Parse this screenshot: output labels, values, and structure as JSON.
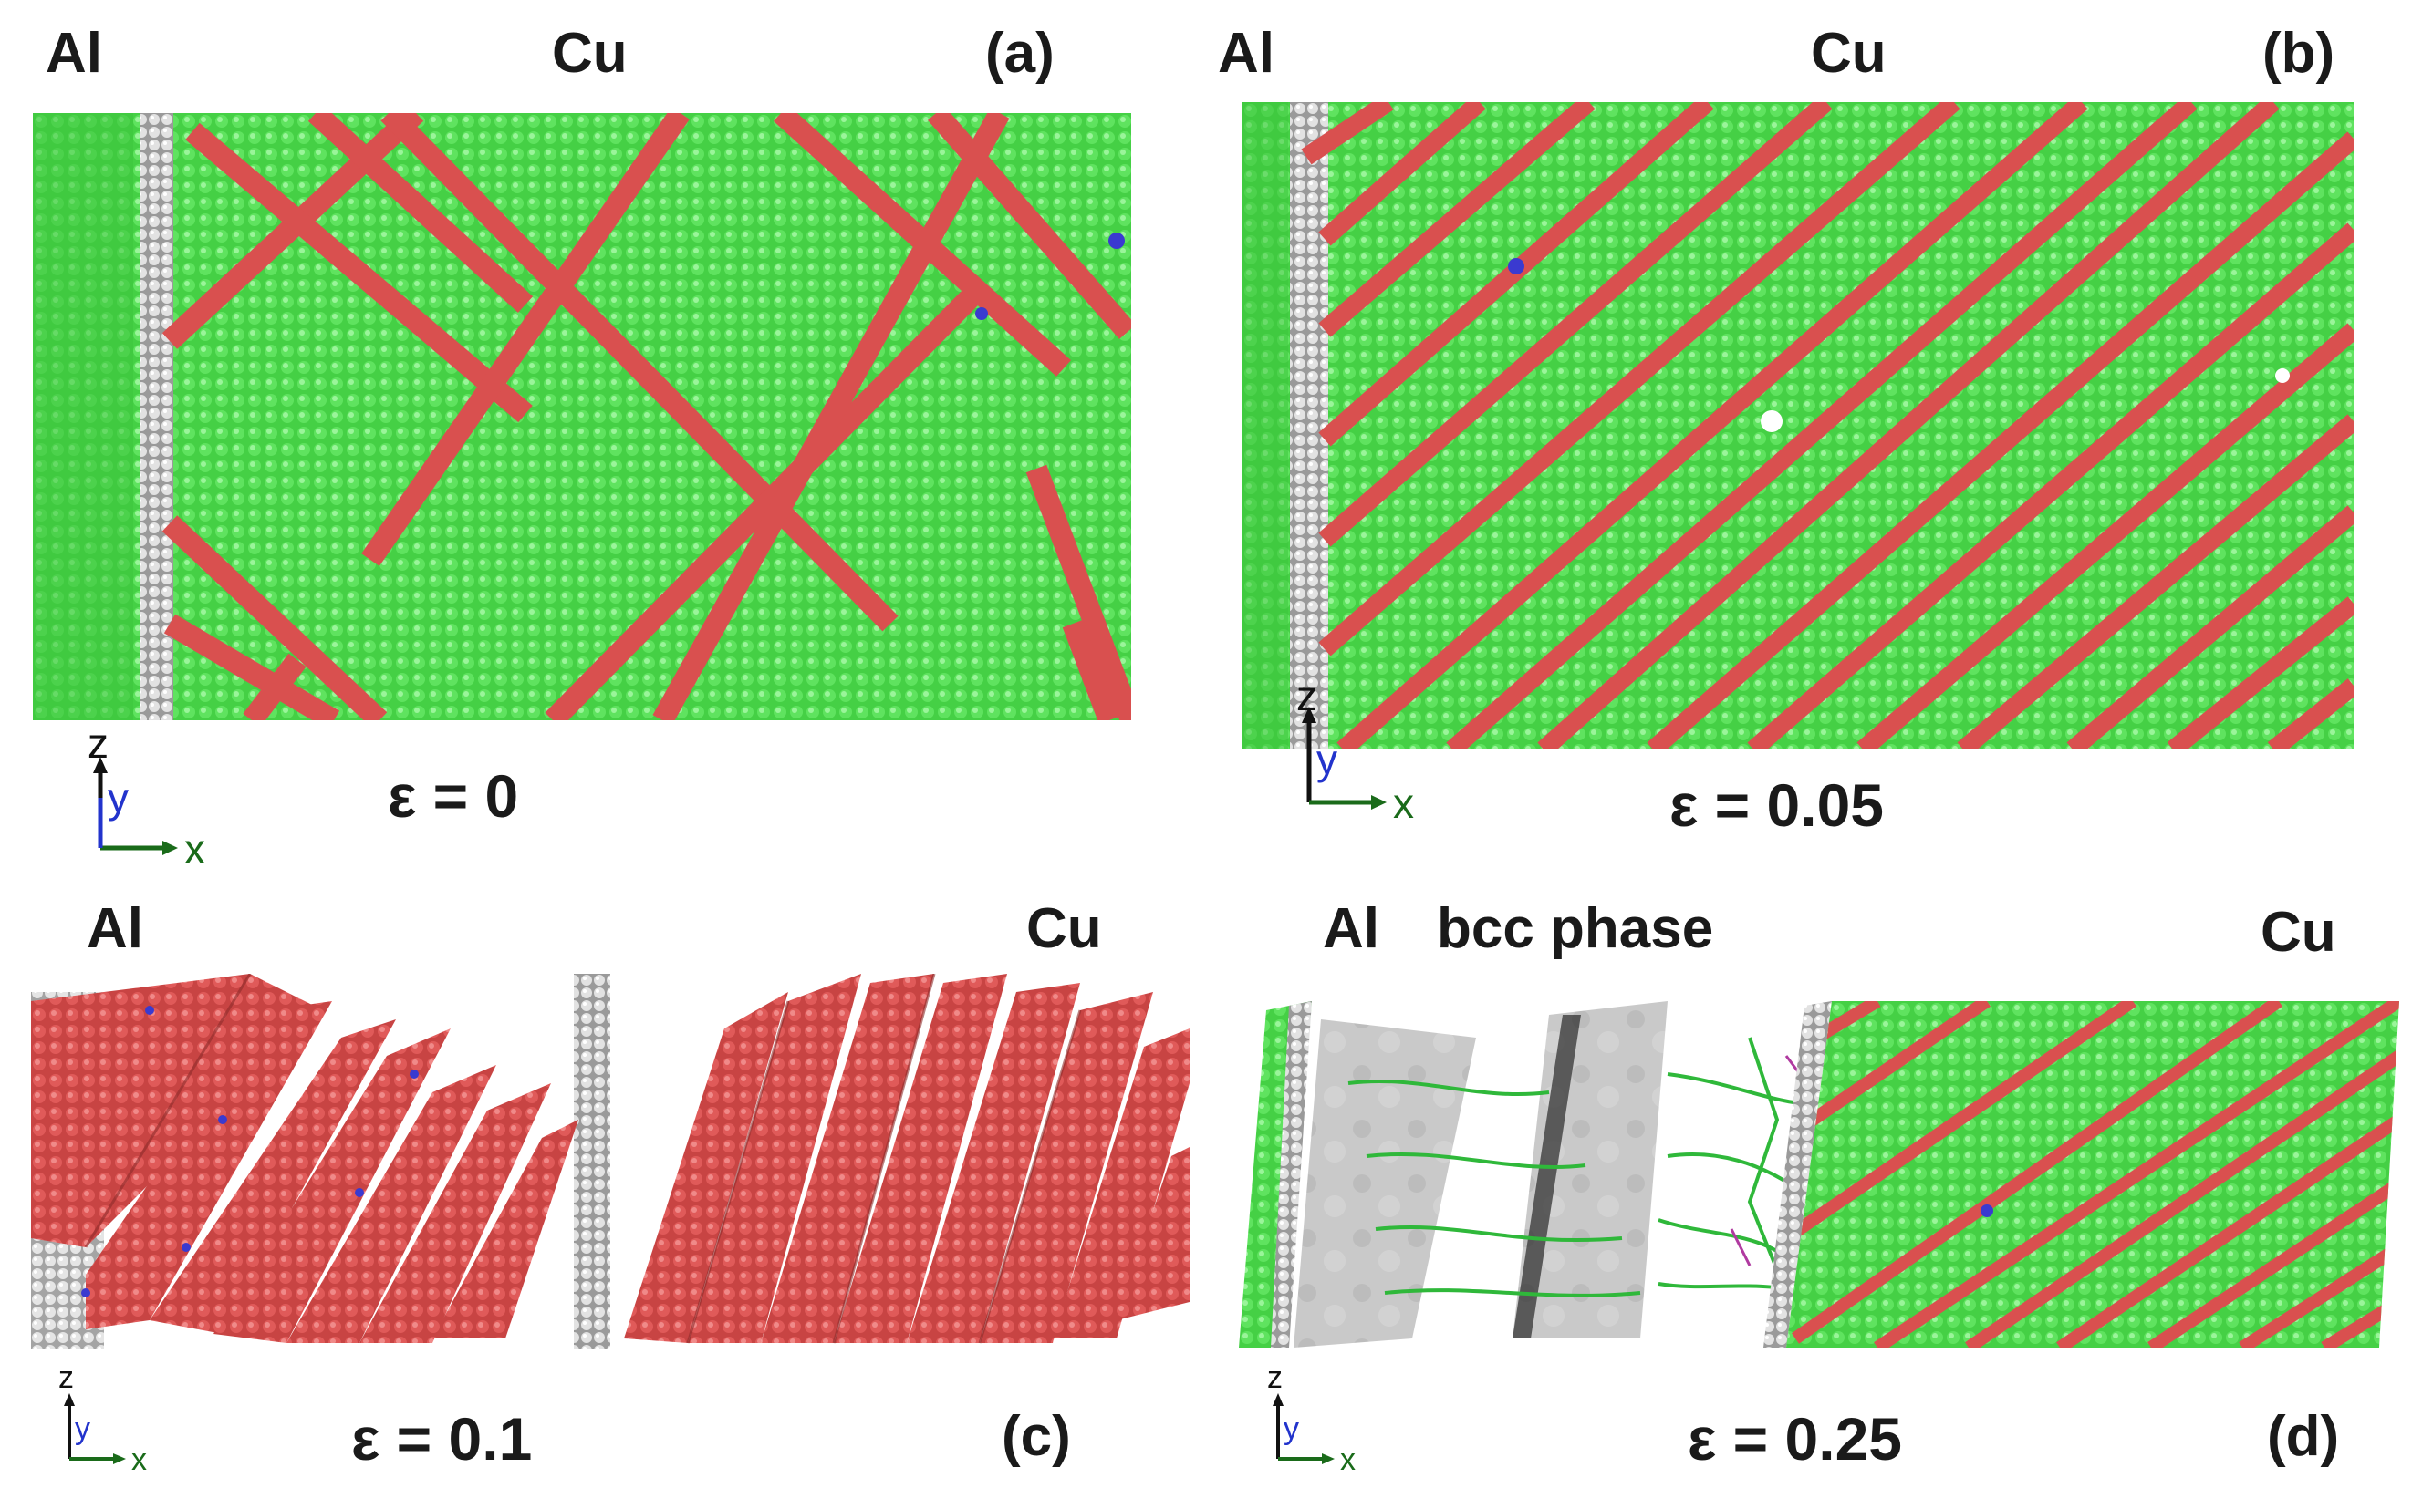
{
  "figure": {
    "panels": [
      {
        "id": "a",
        "panel_label": "(a)",
        "left_label": "Al",
        "right_label": "Cu",
        "strain_label": "ε = 0",
        "axes": {
          "vertical": "z",
          "depth": "y",
          "horizontal": "x"
        }
      },
      {
        "id": "b",
        "panel_label": "(b)",
        "left_label": "Al",
        "right_label": "Cu",
        "strain_label": "ε = 0.05",
        "axes": {
          "vertical": "z",
          "depth": "y",
          "horizontal": "x"
        }
      },
      {
        "id": "c",
        "panel_label": "(c)",
        "left_label": "Al",
        "right_label": "Cu",
        "strain_label": "ε = 0.1",
        "axes": {
          "vertical": "z",
          "depth": "y",
          "horizontal": "x"
        }
      },
      {
        "id": "d",
        "panel_label": "(d)",
        "left_label": "Al",
        "middle_label": "bcc phase",
        "right_label": "Cu",
        "strain_label": "ε = 0.25",
        "axes": {
          "vertical": "z",
          "depth": "y",
          "horizontal": "x"
        }
      }
    ],
    "colors": {
      "fcc_green": "#4cd64c",
      "fcc_green_dark": "#2fae2f",
      "stacking_fault_red": "#d9504f",
      "interface_white": "#d8d8d8",
      "defect_blue": "#3a3ad0",
      "dislocation_line": "#2fb83a",
      "bcc_gray": "#bdbdbd",
      "axis_black": "#111111",
      "axis_blue": "#2233cc",
      "axis_green": "#1a6b1a"
    }
  }
}
